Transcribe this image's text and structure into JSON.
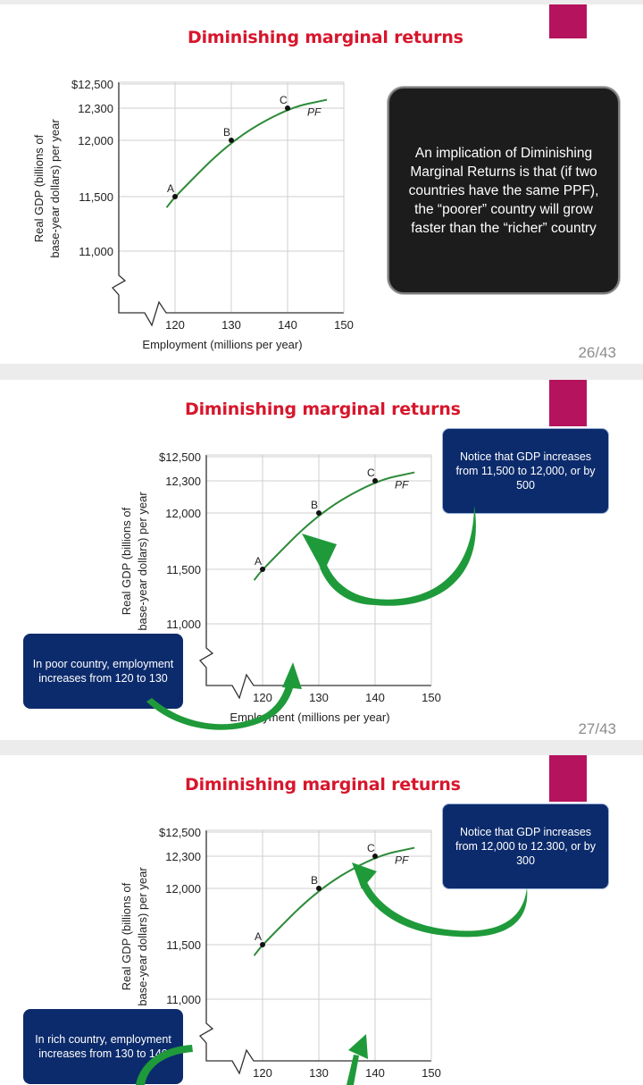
{
  "slides": [
    {
      "title": "Diminishing marginal returns",
      "page": "26/43",
      "callout": "An implication of Diminishing Marginal Returns is that (if two countries have the same PPF), the “poorer” country will grow faster than the “richer” country"
    },
    {
      "title": "Diminishing marginal returns",
      "page": "27/43",
      "callout_gdp": "Notice that GDP increases from 11,500 to 12,000, or by 500",
      "callout_emp": "In poor country, employment increases from 120 to 130"
    },
    {
      "title": "Diminishing marginal returns",
      "callout_gdp": "Notice that GDP increases from 12,000 to 12.300, or by 300",
      "callout_emp": "In rich country, employment increases from 130 to 140"
    }
  ],
  "chart_data": {
    "type": "line",
    "ylabel_line1": "Real GDP (billions of",
    "ylabel_line2": "base-year dollars) per year",
    "xlabel": "Employment (millions per year)",
    "y_ticks": [
      "$12,500",
      "12,300",
      "12,000",
      "11,500",
      "11,000"
    ],
    "y_tick_values": [
      12500,
      12300,
      12000,
      11500,
      11000
    ],
    "x_ticks": [
      "120",
      "130",
      "140",
      "150"
    ],
    "x_tick_values": [
      120,
      130,
      140,
      150
    ],
    "xlim": [
      110,
      150
    ],
    "curve_label": "PF",
    "curve_color": "#2e8b3a",
    "grid": true,
    "points": [
      {
        "label": "A",
        "x": 120,
        "y": 11500
      },
      {
        "label": "B",
        "x": 130,
        "y": 12000
      },
      {
        "label": "C",
        "x": 140,
        "y": 12300
      }
    ],
    "curve": [
      {
        "x": 118.5,
        "y": 11400
      },
      {
        "x": 120,
        "y": 11500
      },
      {
        "x": 130,
        "y": 12000
      },
      {
        "x": 140,
        "y": 12300
      },
      {
        "x": 147,
        "y": 12370
      }
    ]
  },
  "colors": {
    "title": "#d7162c",
    "accent": "#b5135d",
    "callout_blue": "#0c2b6c",
    "arrow_green": "#1f9a3a"
  }
}
